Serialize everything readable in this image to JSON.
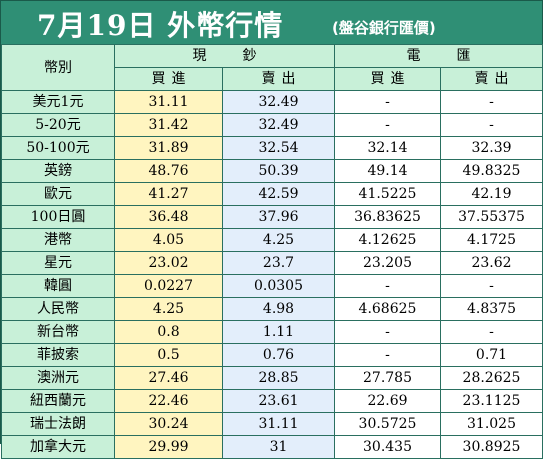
{
  "header": {
    "title": "7月19日 外幣行情",
    "subtitle": "(盤谷銀行匯價)"
  },
  "columns": {
    "currency": "幣別",
    "cash": "現鈔",
    "wire": "電匯",
    "buy": "買進",
    "sell": "賣出"
  },
  "colors": {
    "banner": "#2f8f75",
    "header_cell": "#c8f0d8",
    "cash_buy": "#fff5c0",
    "cash_sell": "#e3eefb",
    "border": "#2a6f60"
  },
  "rows": [
    {
      "name": "美元1元",
      "cash_buy": "31.11",
      "cash_sell": "32.49",
      "wire_buy": "-",
      "wire_sell": "-"
    },
    {
      "name": "5-20元",
      "cash_buy": "31.42",
      "cash_sell": "32.49",
      "wire_buy": "-",
      "wire_sell": "-"
    },
    {
      "name": "50-100元",
      "cash_buy": "31.89",
      "cash_sell": "32.54",
      "wire_buy": "32.14",
      "wire_sell": "32.39"
    },
    {
      "name": "英鎊",
      "cash_buy": "48.76",
      "cash_sell": "50.39",
      "wire_buy": "49.14",
      "wire_sell": "49.8325"
    },
    {
      "name": "歐元",
      "cash_buy": "41.27",
      "cash_sell": "42.59",
      "wire_buy": "41.5225",
      "wire_sell": "42.19"
    },
    {
      "name": "100日圓",
      "cash_buy": "36.48",
      "cash_sell": "37.96",
      "wire_buy": "36.83625",
      "wire_sell": "37.55375"
    },
    {
      "name": "港幣",
      "cash_buy": "4.05",
      "cash_sell": "4.25",
      "wire_buy": "4.12625",
      "wire_sell": "4.1725"
    },
    {
      "name": "星元",
      "cash_buy": "23.02",
      "cash_sell": "23.7",
      "wire_buy": "23.205",
      "wire_sell": "23.62"
    },
    {
      "name": "韓圓",
      "cash_buy": "0.0227",
      "cash_sell": "0.0305",
      "wire_buy": "-",
      "wire_sell": "-"
    },
    {
      "name": "人民幣",
      "cash_buy": "4.25",
      "cash_sell": "4.98",
      "wire_buy": "4.68625",
      "wire_sell": "4.8375"
    },
    {
      "name": "新台幣",
      "cash_buy": "0.8",
      "cash_sell": "1.11",
      "wire_buy": "-",
      "wire_sell": "-"
    },
    {
      "name": "菲披索",
      "cash_buy": "0.5",
      "cash_sell": "0.76",
      "wire_buy": "-",
      "wire_sell": "0.71"
    },
    {
      "name": "澳洲元",
      "cash_buy": "27.46",
      "cash_sell": "28.85",
      "wire_buy": "27.785",
      "wire_sell": "28.2625"
    },
    {
      "name": "紐西蘭元",
      "cash_buy": "22.46",
      "cash_sell": "23.61",
      "wire_buy": "22.69",
      "wire_sell": "23.1125"
    },
    {
      "name": "瑞士法朗",
      "cash_buy": "30.24",
      "cash_sell": "31.11",
      "wire_buy": "30.5725",
      "wire_sell": "31.025"
    },
    {
      "name": "加拿大元",
      "cash_buy": "29.99",
      "cash_sell": "31",
      "wire_buy": "30.435",
      "wire_sell": "30.8925"
    }
  ]
}
